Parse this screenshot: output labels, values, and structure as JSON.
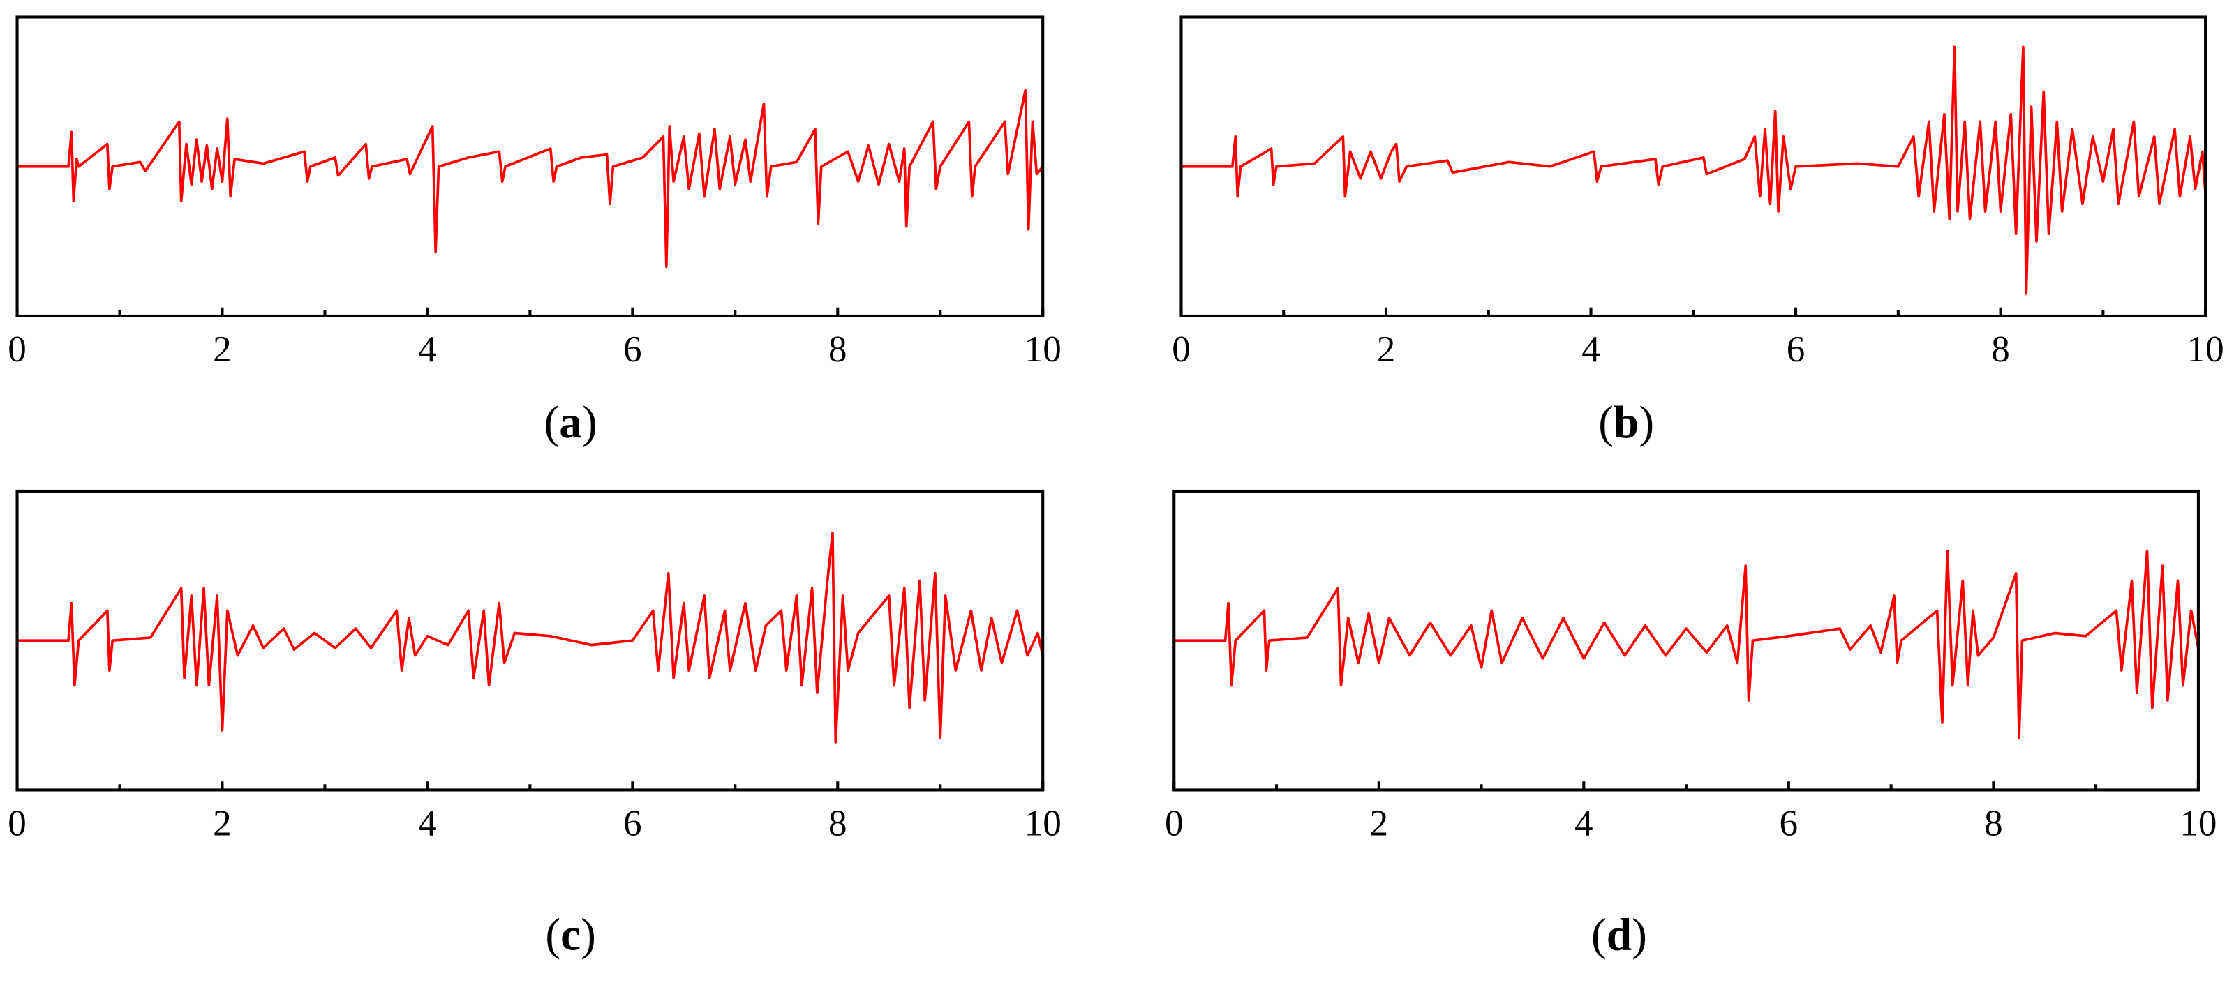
{
  "chart_data": [
    {
      "type": "line",
      "caption": "(a)",
      "color": "#ff0000",
      "xlim": [
        0,
        10
      ],
      "xticks": [
        0,
        2,
        4,
        6,
        8,
        10
      ],
      "xminor_ticks": [
        1,
        3,
        5,
        7,
        9
      ],
      "ylim": [
        -1,
        1
      ],
      "x": [
        0,
        0.5,
        0.53,
        0.55,
        0.58,
        0.6,
        0.88,
        0.9,
        0.93,
        1.2,
        1.25,
        1.58,
        1.6,
        1.65,
        1.7,
        1.75,
        1.8,
        1.85,
        1.9,
        1.95,
        2.0,
        2.05,
        2.08,
        2.12,
        2.4,
        2.8,
        2.83,
        2.86,
        3.1,
        3.13,
        3.4,
        3.43,
        3.46,
        3.8,
        3.83,
        4.05,
        4.08,
        4.11,
        4.4,
        4.7,
        4.73,
        4.76,
        5.2,
        5.23,
        5.26,
        5.5,
        5.75,
        5.78,
        5.81,
        6.1,
        6.3,
        6.33,
        6.36,
        6.4,
        6.5,
        6.55,
        6.65,
        6.7,
        6.8,
        6.85,
        6.95,
        7.0,
        7.1,
        7.15,
        7.28,
        7.31,
        7.35,
        7.6,
        7.78,
        7.81,
        7.84,
        8.1,
        8.2,
        8.3,
        8.4,
        8.5,
        8.6,
        8.65,
        8.67,
        8.7,
        8.93,
        8.96,
        9.0,
        9.28,
        9.31,
        9.34,
        9.63,
        9.66,
        9.83,
        9.86,
        9.9,
        9.94,
        10
      ],
      "values": [
        0,
        0,
        0.23,
        -0.23,
        0.05,
        0,
        0.15,
        -0.15,
        0,
        0.03,
        -0.03,
        0.3,
        -0.23,
        0.15,
        -0.12,
        0.18,
        -0.1,
        0.14,
        -0.15,
        0.12,
        -0.1,
        0.32,
        -0.2,
        0.05,
        0.02,
        0.1,
        -0.1,
        0,
        0.06,
        -0.06,
        0.15,
        -0.08,
        0,
        0.05,
        -0.05,
        0.27,
        -0.57,
        0,
        0.06,
        0.1,
        -0.1,
        0,
        0.12,
        -0.1,
        0,
        0.06,
        0.08,
        -0.25,
        0,
        0.06,
        0.2,
        -0.67,
        0.27,
        -0.1,
        0.2,
        -0.15,
        0.22,
        -0.2,
        0.25,
        -0.15,
        0.2,
        -0.12,
        0.18,
        -0.1,
        0.42,
        -0.2,
        0,
        0.03,
        0.25,
        -0.38,
        0,
        0.1,
        -0.1,
        0.14,
        -0.12,
        0.15,
        -0.1,
        0.12,
        -0.4,
        0,
        0.3,
        -0.15,
        0,
        0.3,
        -0.2,
        0,
        0.3,
        -0.05,
        0.51,
        -0.42,
        0.3,
        -0.05,
        0
      ]
    },
    {
      "type": "line",
      "caption": "(b)",
      "color": "#ff0000",
      "xlim": [
        0,
        10
      ],
      "xticks": [
        0,
        2,
        4,
        6,
        8,
        10
      ],
      "xminor_ticks": [
        1,
        3,
        5,
        7,
        9
      ],
      "ylim": [
        -1,
        1
      ],
      "x": [
        0,
        0.5,
        0.53,
        0.55,
        0.58,
        0.88,
        0.9,
        0.93,
        1.3,
        1.58,
        1.6,
        1.65,
        1.75,
        1.85,
        1.95,
        2.05,
        2.1,
        2.13,
        2.2,
        2.6,
        2.65,
        3.2,
        3.6,
        4.03,
        4.06,
        4.1,
        4.63,
        4.66,
        4.7,
        5.1,
        5.13,
        5.5,
        5.6,
        5.65,
        5.7,
        5.75,
        5.8,
        5.83,
        5.88,
        5.95,
        6.0,
        6.6,
        7.0,
        7.15,
        7.2,
        7.3,
        7.35,
        7.45,
        7.5,
        7.55,
        7.58,
        7.65,
        7.7,
        7.8,
        7.85,
        7.95,
        8.0,
        8.1,
        8.15,
        8.22,
        8.25,
        8.3,
        8.35,
        8.42,
        8.47,
        8.55,
        8.6,
        8.7,
        8.8,
        8.9,
        9.0,
        9.1,
        9.15,
        9.3,
        9.35,
        9.5,
        9.55,
        9.7,
        9.75,
        9.85,
        9.9,
        9.97,
        10
      ],
      "values": [
        0,
        0,
        0.2,
        -0.2,
        0,
        0.12,
        -0.12,
        0,
        0.02,
        0.2,
        -0.2,
        0.1,
        -0.08,
        0.1,
        -0.08,
        0.1,
        0.15,
        -0.1,
        0,
        0.04,
        -0.04,
        0.03,
        0,
        0.1,
        -0.1,
        0,
        0.05,
        -0.12,
        0,
        0.06,
        -0.05,
        0.05,
        0.2,
        -0.2,
        0.25,
        -0.25,
        0.37,
        -0.3,
        0.2,
        -0.15,
        0,
        0.02,
        0,
        0.2,
        -0.2,
        0.3,
        -0.3,
        0.35,
        -0.35,
        0.8,
        -0.3,
        0.3,
        -0.35,
        0.3,
        -0.3,
        0.3,
        -0.3,
        0.35,
        -0.45,
        0.8,
        -0.85,
        0.4,
        -0.5,
        0.5,
        -0.45,
        0.3,
        -0.3,
        0.25,
        -0.25,
        0.2,
        -0.1,
        0.25,
        -0.25,
        0.3,
        -0.2,
        0.2,
        -0.25,
        0.25,
        -0.2,
        0.2,
        -0.15,
        0.1,
        -0.18
      ]
    },
    {
      "type": "line",
      "caption": "(c)",
      "color": "#ff0000",
      "xlim": [
        0,
        10
      ],
      "xticks": [
        0,
        2,
        4,
        6,
        8,
        10
      ],
      "xminor_ticks": [
        1,
        3,
        5,
        7,
        9
      ],
      "ylim": [
        -1,
        1
      ],
      "x": [
        0,
        0.5,
        0.53,
        0.56,
        0.6,
        0.88,
        0.9,
        0.93,
        1.3,
        1.6,
        1.63,
        1.7,
        1.75,
        1.82,
        1.87,
        1.95,
        2.0,
        2.05,
        2.15,
        2.3,
        2.4,
        2.6,
        2.7,
        2.9,
        3.1,
        3.3,
        3.45,
        3.7,
        3.75,
        3.82,
        3.88,
        4.0,
        4.2,
        4.4,
        4.45,
        4.55,
        4.6,
        4.7,
        4.75,
        4.85,
        5.2,
        5.6,
        6.0,
        6.2,
        6.25,
        6.35,
        6.4,
        6.5,
        6.55,
        6.7,
        6.75,
        6.9,
        6.95,
        7.1,
        7.2,
        7.3,
        7.45,
        7.5,
        7.6,
        7.65,
        7.75,
        7.8,
        7.9,
        7.95,
        7.98,
        8.05,
        8.1,
        8.2,
        8.5,
        8.55,
        8.65,
        8.7,
        8.8,
        8.85,
        8.95,
        9.0,
        9.05,
        9.15,
        9.3,
        9.4,
        9.5,
        9.6,
        9.75,
        9.85,
        9.95,
        10
      ],
      "values": [
        0,
        0,
        0.25,
        -0.3,
        0,
        0.2,
        -0.2,
        0,
        0.02,
        0.35,
        -0.25,
        0.3,
        -0.3,
        0.35,
        -0.3,
        0.3,
        -0.6,
        0.2,
        -0.1,
        0.1,
        -0.05,
        0.08,
        -0.06,
        0.05,
        -0.05,
        0.08,
        -0.05,
        0.2,
        -0.2,
        0.15,
        -0.1,
        0.03,
        -0.03,
        0.2,
        -0.25,
        0.2,
        -0.3,
        0.25,
        -0.15,
        0.05,
        0.03,
        -0.03,
        0,
        0.2,
        -0.2,
        0.45,
        -0.25,
        0.25,
        -0.2,
        0.3,
        -0.25,
        0.2,
        -0.2,
        0.25,
        -0.2,
        0.1,
        0.2,
        -0.2,
        0.3,
        -0.3,
        0.35,
        -0.35,
        0.4,
        0.72,
        -0.68,
        0.3,
        -0.2,
        0.05,
        0.3,
        -0.3,
        0.35,
        -0.45,
        0.4,
        -0.4,
        0.45,
        -0.65,
        0.3,
        -0.2,
        0.2,
        -0.2,
        0.15,
        -0.15,
        0.2,
        -0.1,
        0.05,
        -0.1
      ]
    },
    {
      "type": "line",
      "caption": "(d)",
      "color": "#ff0000",
      "xlim": [
        0,
        10
      ],
      "xticks": [
        0,
        2,
        4,
        6,
        8,
        10
      ],
      "xminor_ticks": [
        1,
        3,
        5,
        7,
        9
      ],
      "ylim": [
        -1,
        1
      ],
      "x": [
        0,
        0.5,
        0.53,
        0.56,
        0.6,
        0.88,
        0.9,
        0.93,
        1.3,
        1.6,
        1.63,
        1.7,
        1.8,
        1.9,
        2.0,
        2.1,
        2.3,
        2.5,
        2.7,
        2.9,
        3.0,
        3.1,
        3.2,
        3.4,
        3.6,
        3.8,
        4.0,
        4.2,
        4.4,
        4.6,
        4.8,
        5.0,
        5.2,
        5.4,
        5.5,
        5.58,
        5.61,
        5.65,
        6.0,
        6.5,
        6.6,
        6.8,
        6.9,
        7.03,
        7.06,
        7.1,
        7.45,
        7.5,
        7.55,
        7.6,
        7.7,
        7.75,
        7.8,
        7.85,
        8.0,
        8.22,
        8.25,
        8.28,
        8.6,
        8.9,
        9.2,
        9.25,
        9.35,
        9.4,
        9.5,
        9.55,
        9.65,
        9.7,
        9.8,
        9.85,
        9.93,
        10
      ],
      "values": [
        0,
        0,
        0.25,
        -0.3,
        0,
        0.2,
        -0.2,
        0,
        0.02,
        0.35,
        -0.3,
        0.15,
        -0.15,
        0.18,
        -0.15,
        0.15,
        -0.1,
        0.12,
        -0.1,
        0.1,
        -0.18,
        0.2,
        -0.15,
        0.15,
        -0.12,
        0.15,
        -0.12,
        0.12,
        -0.1,
        0.1,
        -0.1,
        0.08,
        -0.08,
        0.1,
        -0.15,
        0.5,
        -0.4,
        0,
        0.03,
        0.08,
        -0.06,
        0.1,
        -0.08,
        0.3,
        -0.15,
        0,
        0.2,
        -0.55,
        0.6,
        -0.3,
        0.4,
        -0.3,
        0.2,
        -0.1,
        0.02,
        0.45,
        -0.65,
        0,
        0.05,
        0.03,
        0.2,
        -0.2,
        0.4,
        -0.35,
        0.6,
        -0.45,
        0.5,
        -0.4,
        0.4,
        -0.3,
        0.2,
        -0.05
      ]
    }
  ]
}
